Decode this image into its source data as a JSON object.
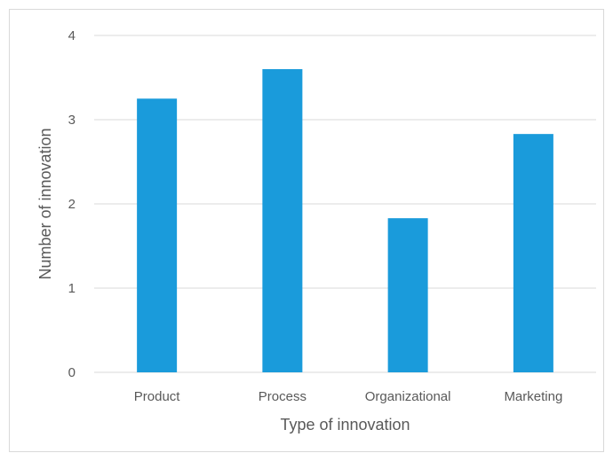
{
  "chart_data": {
    "type": "bar",
    "title": "",
    "xlabel": "Type of innovation",
    "ylabel": "Number of innovation",
    "categories": [
      "Product",
      "Process",
      "Organizational",
      "Marketing"
    ],
    "values": [
      3.25,
      3.6,
      1.83,
      2.83
    ],
    "ylim": [
      0,
      4
    ],
    "yticks": [
      "0",
      "1",
      "2",
      "3",
      "4"
    ],
    "grid": true,
    "legend": "none",
    "colors": {
      "bar": "#1a9bdb",
      "grid": "#d9d9d9",
      "text": "#595959"
    }
  }
}
